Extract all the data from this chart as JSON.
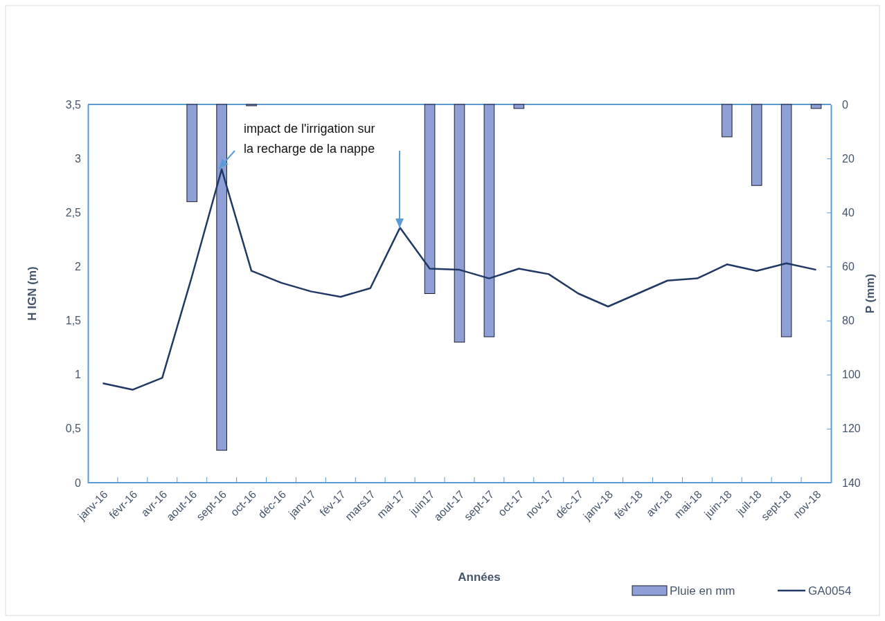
{
  "chart_data": {
    "type": "bar",
    "xlabel": "Années",
    "ylabel": "H IGN (m)",
    "y2label": "P (mm)",
    "categories": [
      "janv-16",
      "févr-16",
      "avr-16",
      "aout-16",
      "sept-16",
      "oct-16",
      "déc-16",
      "janv17",
      "fév-17",
      "mars17",
      "mai-17",
      "juin17",
      "aout-17",
      "sept-17",
      "oct-17",
      "nov-17",
      "déc-17",
      "janv-18",
      "févr-18",
      "avr-18",
      "mai-18",
      "juin-18",
      "juil-18",
      "sept-18",
      "nov-18"
    ],
    "series": [
      {
        "name": "Pluie en mm",
        "type": "bar",
        "axis": "y2",
        "color": "#8ea0d6",
        "values": [
          null,
          null,
          null,
          36,
          128,
          0.5,
          null,
          null,
          null,
          null,
          null,
          70,
          88,
          86,
          1.5,
          null,
          null,
          null,
          null,
          null,
          null,
          12,
          30,
          86,
          1.5
        ]
      },
      {
        "name": "GA0054",
        "type": "line",
        "color": "#1f3864",
        "values": [
          0.92,
          0.86,
          0.97,
          1.91,
          2.9,
          1.96,
          1.85,
          1.77,
          1.72,
          1.8,
          2.36,
          1.98,
          1.97,
          1.89,
          1.98,
          1.93,
          1.75,
          1.63,
          1.75,
          1.87,
          1.89,
          2.02,
          1.96,
          2.03,
          1.97
        ]
      }
    ],
    "ylim": [
      0,
      3.5
    ],
    "yticks": [
      {
        "value": 0,
        "label": "0"
      },
      {
        "value": 0.5,
        "label": "0,5"
      },
      {
        "value": 1,
        "label": "1"
      },
      {
        "value": 1.5,
        "label": "1,5"
      },
      {
        "value": 2,
        "label": "2"
      },
      {
        "value": 2.5,
        "label": "2,5"
      },
      {
        "value": 3,
        "label": "3"
      },
      {
        "value": 3.5,
        "label": "3,5"
      }
    ],
    "y2lim": [
      140,
      0
    ],
    "y2ticks": [
      0,
      20,
      40,
      60,
      80,
      100,
      120,
      140
    ],
    "annotations": [
      "impact de l'irrigation sur la recharge de la nappe"
    ],
    "legend": "bottom right",
    "grid": false,
    "marker": "none"
  }
}
